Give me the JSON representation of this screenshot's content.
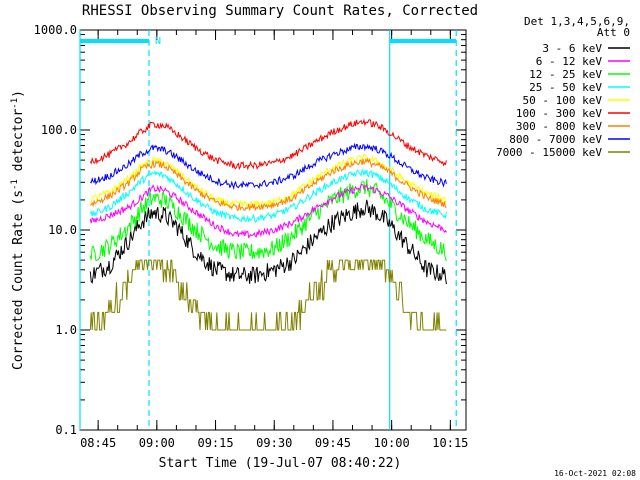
{
  "chart_data": {
    "type": "line",
    "title": "RHESSI Observing Summary Count Rates, Corrected",
    "xlabel": "Start Time (19-Jul-07 08:40:22)",
    "ylabel_parts": [
      "Corrected Count Rate (s",
      "-1",
      " detector",
      "-1",
      ")"
    ],
    "y_scale": "log",
    "ylim": [
      0.1,
      1000.0
    ],
    "y_ticks": [
      {
        "value": 0.1,
        "label": "0.1"
      },
      {
        "value": 1.0,
        "label": "1.0"
      },
      {
        "value": 10.0,
        "label": "10.0"
      },
      {
        "value": 100.0,
        "label": "100.0"
      },
      {
        "value": 1000.0,
        "label": "1000.0"
      }
    ],
    "xlim": [
      "08:40:22",
      "10:19:00"
    ],
    "x_ticks": [
      "08:45",
      "09:00",
      "09:15",
      "09:30",
      "09:45",
      "10:00",
      "10:15"
    ],
    "legend_header": [
      "Det 1,3,4,5,6,9,",
      "Att 0"
    ],
    "legend_position": "top-right, outside plot",
    "timestamp": "16-Oct-2021 02:08",
    "night_marks": [
      {
        "start": "08:40:22",
        "end": "08:58:00",
        "label": "N"
      },
      {
        "start": "09:59:30",
        "end": "10:16:30",
        "label": ""
      }
    ],
    "markers": {
      "solid": [
        "08:40:22",
        "09:59:30"
      ],
      "dashed": [
        "08:58:00",
        "10:16:30"
      ]
    },
    "times": [
      "08:43",
      "08:48",
      "08:53",
      "08:56",
      "08:59",
      "09:02",
      "09:05",
      "09:10",
      "09:15",
      "09:20",
      "09:25",
      "09:30",
      "09:35",
      "09:40",
      "09:45",
      "09:50",
      "09:53",
      "09:56",
      "09:59",
      "10:04",
      "10:09",
      "10:14"
    ],
    "series": [
      {
        "name": "3 - 6 keV",
        "color": "#000000",
        "values": [
          3.5,
          4.5,
          8,
          12,
          15,
          14,
          11,
          6,
          4,
          3.5,
          3.5,
          4,
          5,
          8,
          12,
          15,
          17,
          15,
          12,
          7,
          4,
          3.5
        ]
      },
      {
        "name": "6 - 12 keV",
        "color": "#ff00ff",
        "values": [
          12,
          14,
          17,
          21,
          26,
          25,
          21,
          15,
          11,
          9,
          9,
          10,
          12,
          16,
          21,
          25,
          27,
          25,
          22,
          16,
          12,
          10
        ]
      },
      {
        "name": "12 - 25 keV",
        "color": "#00ff00",
        "values": [
          5.5,
          7,
          11,
          16,
          21,
          20,
          16,
          10,
          7,
          6,
          6,
          6.5,
          9,
          14,
          20,
          25,
          27,
          24,
          19,
          12,
          8,
          6
        ]
      },
      {
        "name": "25 - 50 keV",
        "color": "#00ffff",
        "values": [
          14,
          17,
          24,
          31,
          37,
          35,
          29,
          20,
          15,
          13,
          13,
          14,
          17,
          23,
          30,
          36,
          38,
          35,
          30,
          21,
          16,
          14
        ]
      },
      {
        "name": "50 - 100 keV",
        "color": "#ffff00",
        "values": [
          20,
          24,
          33,
          43,
          50,
          47,
          39,
          27,
          20,
          18,
          18,
          19,
          23,
          32,
          42,
          50,
          53,
          49,
          42,
          30,
          23,
          20
        ]
      },
      {
        "name": "100 - 300 keV",
        "color": "#ff0000",
        "values": [
          48,
          57,
          76,
          96,
          115,
          110,
          92,
          66,
          50,
          44,
          44,
          47,
          56,
          74,
          96,
          115,
          122,
          113,
          97,
          70,
          55,
          47
        ]
      },
      {
        "name": "300 - 800 keV",
        "color": "#ff8000",
        "values": [
          18,
          22,
          30,
          40,
          46,
          44,
          36,
          25,
          19,
          17,
          17,
          18,
          21,
          29,
          39,
          46,
          49,
          45,
          39,
          28,
          21,
          18
        ]
      },
      {
        "name": "800 - 7000 keV",
        "color": "#0000ff",
        "values": [
          30,
          35,
          46,
          58,
          66,
          63,
          54,
          39,
          31,
          28,
          28,
          30,
          35,
          46,
          57,
          66,
          69,
          65,
          57,
          42,
          33,
          29
        ]
      },
      {
        "name": "7000 - 15000 keV",
        "color": "#808000",
        "values": [
          1.0,
          1.5,
          3,
          4.5,
          5,
          4.5,
          3,
          1.5,
          1.0,
          1.0,
          1.0,
          1.0,
          1.2,
          2.5,
          4,
          4.8,
          5,
          4.8,
          4,
          1.5,
          1.0,
          1.0
        ]
      }
    ]
  }
}
